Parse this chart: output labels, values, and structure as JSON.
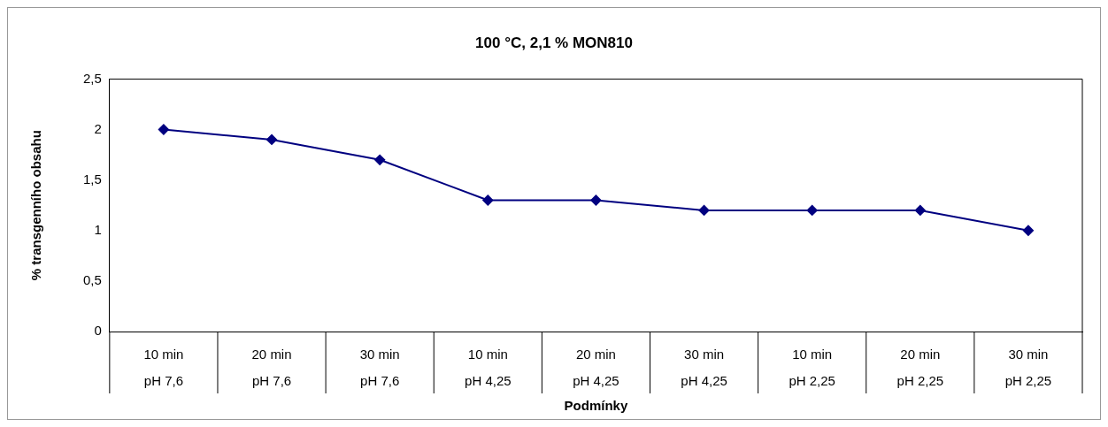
{
  "chart_data": {
    "type": "line",
    "title": "100 °C, 2,1 % MON810",
    "xlabel": "Podmínky",
    "ylabel": "% transgenního obsahu",
    "categories": [
      "10 min\npH 7,6",
      "20 min\npH 7,6",
      "30 min\npH 7,6",
      "10 min\npH 4,25",
      "20 min\npH 4,25",
      "30 min\npH 4,25",
      "10 min\npH 2,25",
      "20 min\npH 2,25",
      "30 min\npH 2,25"
    ],
    "series": [
      {
        "color": "#000080",
        "values": [
          2,
          1.9,
          1.7,
          1.3,
          1.3,
          1.2,
          1.2,
          1.2,
          1.0
        ]
      }
    ],
    "ylim": [
      0,
      2.5
    ],
    "yticks": [
      0,
      {
        "value": 0.5,
        "label": "0,5"
      },
      1,
      {
        "value": 1.5,
        "label": "1,5"
      },
      2,
      {
        "value": 2.5,
        "label": "2,5"
      }
    ],
    "marker": "diamond",
    "line_style": "solid"
  }
}
